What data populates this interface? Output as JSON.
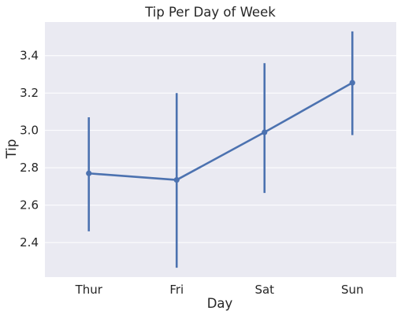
{
  "chart_data": {
    "type": "line",
    "title": "Tip Per Day of Week",
    "xlabel": "Day",
    "ylabel": "Tip",
    "categories": [
      "Thur",
      "Fri",
      "Sat",
      "Sun"
    ],
    "series": [
      {
        "values": [
          2.77,
          2.735,
          2.99,
          3.255
        ],
        "ci_low": [
          2.46,
          2.265,
          2.665,
          2.975
        ],
        "ci_high": [
          3.07,
          3.2,
          3.36,
          3.53
        ]
      }
    ],
    "yticks": [
      "2.4",
      "2.6",
      "2.8",
      "3.0",
      "3.2",
      "3.4"
    ],
    "ylim": [
      2.215,
      3.58
    ],
    "grid": true,
    "background": "#eaeaf2",
    "grid_color": "#ffffff",
    "line_color": "#4c72b0"
  }
}
